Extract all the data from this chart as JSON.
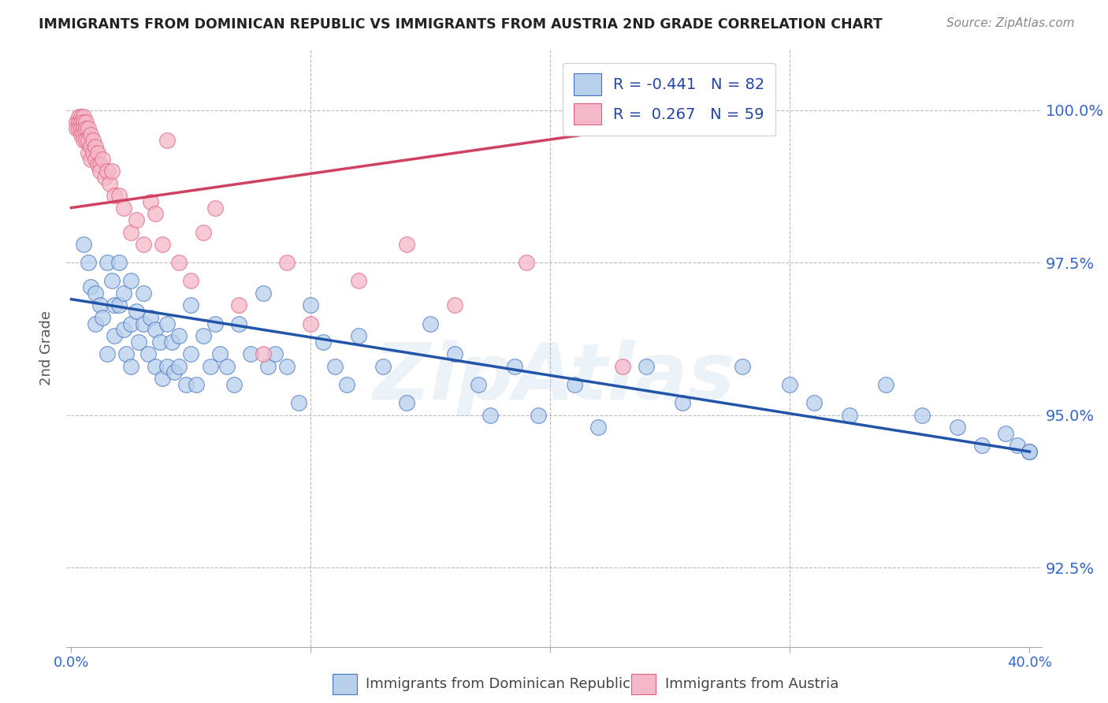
{
  "title": "IMMIGRANTS FROM DOMINICAN REPUBLIC VS IMMIGRANTS FROM AUSTRIA 2ND GRADE CORRELATION CHART",
  "source": "Source: ZipAtlas.com",
  "ylabel": "2nd Grade",
  "ytick_labels": [
    "92.5%",
    "95.0%",
    "97.5%",
    "100.0%"
  ],
  "ytick_values": [
    0.925,
    0.95,
    0.975,
    1.0
  ],
  "xlim": [
    -0.002,
    0.405
  ],
  "ylim": [
    0.912,
    1.01
  ],
  "legend_r_blue": "-0.441",
  "legend_n_blue": "82",
  "legend_r_pink": " 0.267",
  "legend_n_pink": "59",
  "blue_fill": "#b8d0eb",
  "pink_fill": "#f5b8c8",
  "blue_edge": "#4472c4",
  "pink_edge": "#e06080",
  "line_blue": "#2255aa",
  "line_pink": "#d04060",
  "watermark": "ZipAtlas",
  "blue_trend_x": [
    0.0,
    0.4
  ],
  "blue_trend_y": [
    0.969,
    0.944
  ],
  "pink_trend_x": [
    0.0,
    0.25
  ],
  "pink_trend_y": [
    0.984,
    0.998
  ],
  "blue_x": [
    0.005,
    0.007,
    0.008,
    0.01,
    0.01,
    0.012,
    0.013,
    0.015,
    0.015,
    0.017,
    0.018,
    0.018,
    0.02,
    0.02,
    0.022,
    0.022,
    0.023,
    0.025,
    0.025,
    0.025,
    0.027,
    0.028,
    0.03,
    0.03,
    0.032,
    0.033,
    0.035,
    0.035,
    0.037,
    0.038,
    0.04,
    0.04,
    0.042,
    0.043,
    0.045,
    0.045,
    0.048,
    0.05,
    0.05,
    0.052,
    0.055,
    0.058,
    0.06,
    0.062,
    0.065,
    0.068,
    0.07,
    0.075,
    0.08,
    0.082,
    0.085,
    0.09,
    0.095,
    0.1,
    0.105,
    0.11,
    0.115,
    0.12,
    0.13,
    0.14,
    0.15,
    0.16,
    0.17,
    0.175,
    0.185,
    0.195,
    0.21,
    0.22,
    0.24,
    0.255,
    0.28,
    0.3,
    0.31,
    0.325,
    0.34,
    0.355,
    0.37,
    0.38,
    0.39,
    0.395,
    0.4,
    0.4
  ],
  "blue_y": [
    0.978,
    0.975,
    0.971,
    0.97,
    0.965,
    0.968,
    0.966,
    0.975,
    0.96,
    0.972,
    0.968,
    0.963,
    0.975,
    0.968,
    0.97,
    0.964,
    0.96,
    0.972,
    0.965,
    0.958,
    0.967,
    0.962,
    0.97,
    0.965,
    0.96,
    0.966,
    0.964,
    0.958,
    0.962,
    0.956,
    0.965,
    0.958,
    0.962,
    0.957,
    0.963,
    0.958,
    0.955,
    0.968,
    0.96,
    0.955,
    0.963,
    0.958,
    0.965,
    0.96,
    0.958,
    0.955,
    0.965,
    0.96,
    0.97,
    0.958,
    0.96,
    0.958,
    0.952,
    0.968,
    0.962,
    0.958,
    0.955,
    0.963,
    0.958,
    0.952,
    0.965,
    0.96,
    0.955,
    0.95,
    0.958,
    0.95,
    0.955,
    0.948,
    0.958,
    0.952,
    0.958,
    0.955,
    0.952,
    0.95,
    0.955,
    0.95,
    0.948,
    0.945,
    0.947,
    0.945,
    0.944,
    0.944
  ],
  "pink_x": [
    0.002,
    0.002,
    0.003,
    0.003,
    0.003,
    0.004,
    0.004,
    0.004,
    0.004,
    0.005,
    0.005,
    0.005,
    0.005,
    0.005,
    0.006,
    0.006,
    0.006,
    0.007,
    0.007,
    0.007,
    0.008,
    0.008,
    0.008,
    0.009,
    0.009,
    0.01,
    0.01,
    0.011,
    0.011,
    0.012,
    0.012,
    0.013,
    0.014,
    0.015,
    0.016,
    0.017,
    0.018,
    0.02,
    0.022,
    0.025,
    0.027,
    0.03,
    0.033,
    0.035,
    0.038,
    0.04,
    0.045,
    0.05,
    0.055,
    0.06,
    0.07,
    0.08,
    0.09,
    0.1,
    0.12,
    0.14,
    0.16,
    0.19,
    0.23
  ],
  "pink_y": [
    0.998,
    0.997,
    0.999,
    0.998,
    0.997,
    0.999,
    0.998,
    0.997,
    0.996,
    0.999,
    0.998,
    0.997,
    0.996,
    0.995,
    0.998,
    0.997,
    0.995,
    0.997,
    0.995,
    0.993,
    0.996,
    0.994,
    0.992,
    0.995,
    0.993,
    0.994,
    0.992,
    0.993,
    0.991,
    0.991,
    0.99,
    0.992,
    0.989,
    0.99,
    0.988,
    0.99,
    0.986,
    0.986,
    0.984,
    0.98,
    0.982,
    0.978,
    0.985,
    0.983,
    0.978,
    0.995,
    0.975,
    0.972,
    0.98,
    0.984,
    0.968,
    0.96,
    0.975,
    0.965,
    0.972,
    0.978,
    0.968,
    0.975,
    0.958
  ]
}
